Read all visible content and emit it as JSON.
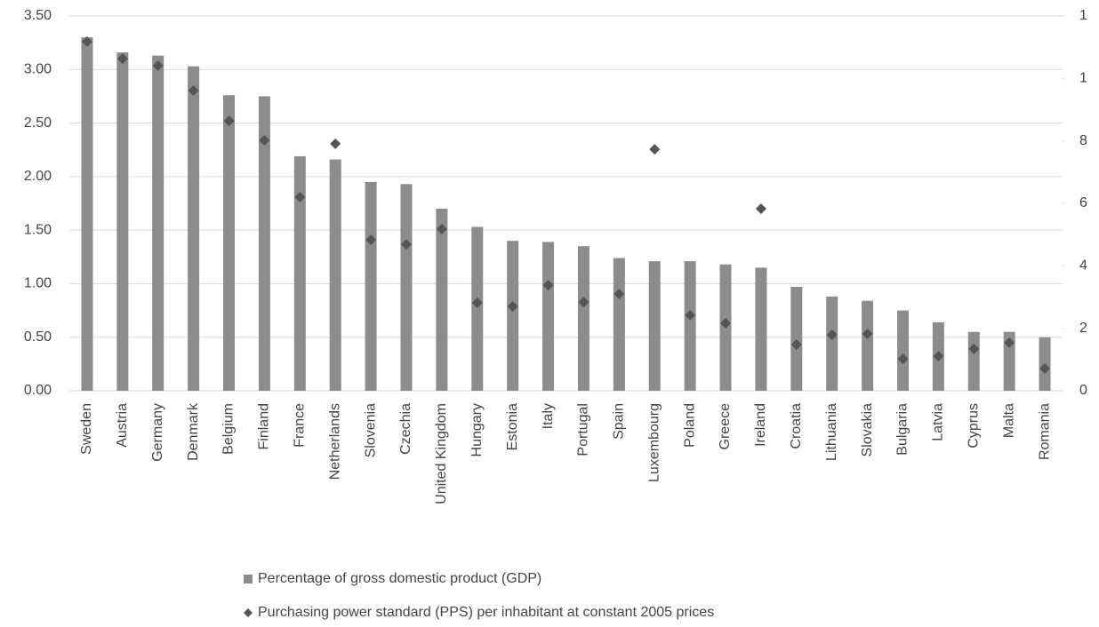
{
  "chart_data": {
    "type": "bar",
    "categories": [
      "Sweden",
      "Austria",
      "Germany",
      "Denmark",
      "Belgium",
      "Finland",
      "France",
      "Netherlands",
      "Slovenia",
      "Czechia",
      "United Kingdom",
      "Hungary",
      "Estonia",
      "Italy",
      "Portugal",
      "Spain",
      "Luxembourg",
      "Poland",
      "Greece",
      "Ireland",
      "Croatia",
      "Lithuania",
      "Slovakia",
      "Bulgaria",
      "Latvia",
      "Cyprus",
      "Malta",
      "Romania"
    ],
    "series": [
      {
        "name": "Percentage of gross domestic product (GDP)",
        "color": "#8c8c8c",
        "type": "bar",
        "values": [
          3.3,
          3.16,
          3.13,
          3.03,
          2.76,
          2.75,
          2.19,
          2.16,
          1.95,
          1.93,
          1.7,
          1.53,
          1.4,
          1.39,
          1.35,
          1.24,
          1.21,
          1.21,
          1.18,
          1.15,
          0.97,
          0.88,
          0.84,
          0.75,
          0.64,
          0.55,
          0.55,
          0.5
        ]
      },
      {
        "name": "Purchasing power standard (PPS) per inhabitant at constant 2005 prices",
        "color": "#555555",
        "type": "scatter",
        "axis": "y2",
        "values": [
          1118,
          1063,
          1041,
          961,
          864,
          802,
          620,
          791,
          483,
          469,
          518,
          282,
          270,
          338,
          284,
          310,
          773,
          242,
          216,
          583,
          148,
          179,
          182,
          102,
          111,
          134,
          154,
          71
        ]
      }
    ],
    "ylim": [
      0,
      3.5
    ],
    "yticks": [
      {
        "value": 0,
        "label": "0.00"
      },
      {
        "value": 0.5,
        "label": "0.50"
      },
      {
        "value": 1,
        "label": "1.00"
      },
      {
        "value": 1.5,
        "label": "1.50"
      },
      {
        "value": 2,
        "label": "2.00"
      },
      {
        "value": 2.5,
        "label": "2.50"
      },
      {
        "value": 3,
        "label": "3.00"
      },
      {
        "value": 3.5,
        "label": "3.50"
      }
    ],
    "y2lim": [
      0,
      1200
    ],
    "y2ticks": [
      0,
      {
        "value": 200,
        "label": "2"
      },
      {
        "value": 400,
        "label": "4"
      },
      {
        "value": 600,
        "label": "6"
      },
      {
        "value": 800,
        "label": "8"
      },
      {
        "value": 1000,
        "label": "1"
      },
      {
        "value": 1200,
        "label": "1"
      }
    ],
    "grid": true
  }
}
